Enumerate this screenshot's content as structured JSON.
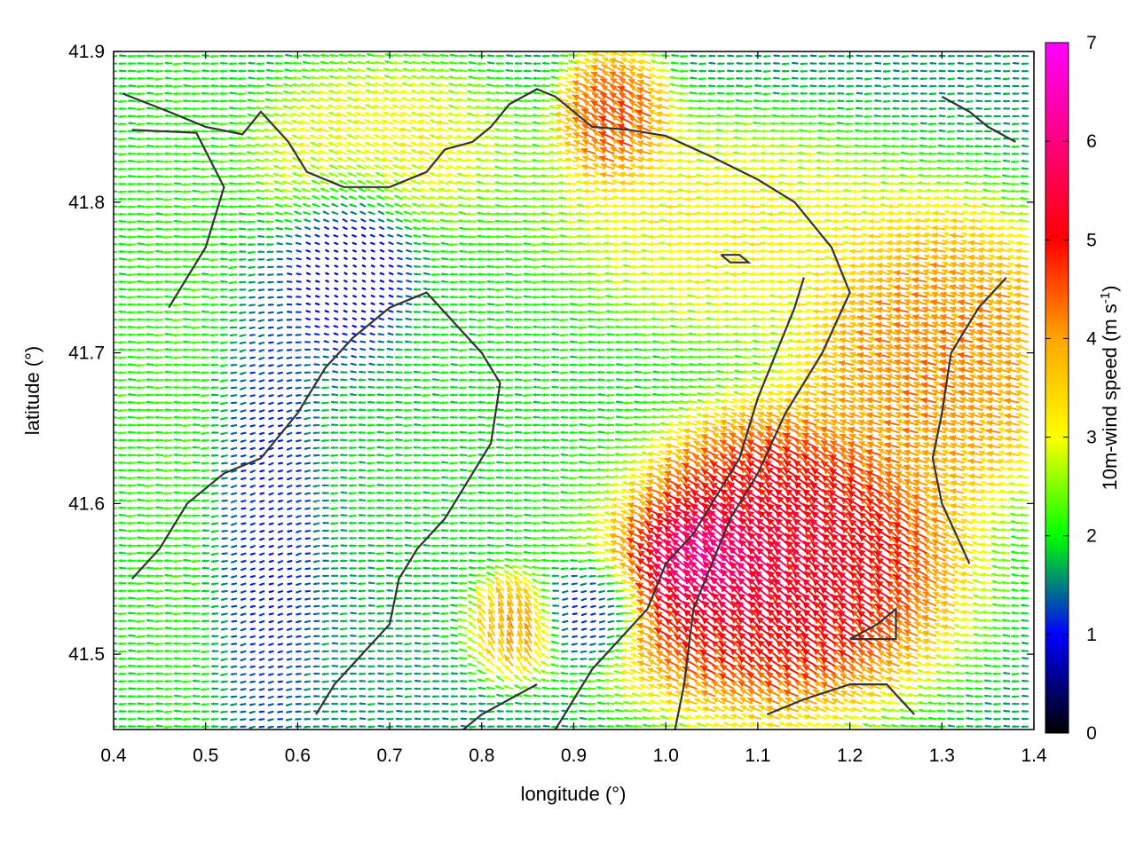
{
  "chart_data": {
    "type": "vector-field",
    "xlabel": "longitude (°)",
    "ylabel": "latitude (°)",
    "colorbar_label": "10m-wind speed (m s",
    "colorbar_label_sup": "-1",
    "colorbar_label_end": ")",
    "xlim": [
      0.4,
      1.4
    ],
    "ylim": [
      41.45,
      41.9
    ],
    "xticks": [
      "0.4",
      "0.5",
      "0.6",
      "0.7",
      "0.8",
      "0.9",
      "1.0",
      "1.1",
      "1.2",
      "1.3",
      "1.4"
    ],
    "yticks": [
      "41.5",
      "41.6",
      "41.7",
      "41.8",
      "41.9"
    ],
    "cbar_range": [
      0,
      7
    ],
    "cbar_ticks": [
      "0",
      "1",
      "2",
      "3",
      "4",
      "5",
      "6",
      "7"
    ],
    "colormap": [
      "#000000",
      "#0000ff",
      "#00ff00",
      "#ffff00",
      "#ffa500",
      "#ff0000",
      "#ff00ff"
    ],
    "grid": true,
    "vector_grid": {
      "dx": 0.01,
      "dy": 0.005
    },
    "wind_regions": [
      {
        "name": "west-green-band",
        "center": [
          0.47,
          41.68
        ],
        "radius": [
          0.07,
          0.22
        ],
        "speed": 2.2,
        "direction_deg": 180
      },
      {
        "name": "west-blue-valley",
        "center": [
          0.56,
          41.6
        ],
        "radius": [
          0.05,
          0.12
        ],
        "speed": 1.0,
        "direction_deg": 200
      },
      {
        "name": "central-calm",
        "center": [
          0.67,
          41.76
        ],
        "radius": [
          0.06,
          0.06
        ],
        "speed": 0.4,
        "direction_deg": 150
      },
      {
        "name": "central-plain",
        "center": [
          0.82,
          41.68
        ],
        "radius": [
          0.16,
          0.12
        ],
        "speed": 2.0,
        "direction_deg": 180
      },
      {
        "name": "north-yellow",
        "center": [
          0.7,
          41.83
        ],
        "radius": [
          0.12,
          0.05
        ],
        "speed": 3.3,
        "direction_deg": 160
      },
      {
        "name": "north-orange",
        "center": [
          0.95,
          41.85
        ],
        "radius": [
          0.05,
          0.04
        ],
        "speed": 4.8,
        "direction_deg": 145
      },
      {
        "name": "east-yellow",
        "center": [
          1.05,
          41.78
        ],
        "radius": [
          0.18,
          0.06
        ],
        "speed": 3.2,
        "direction_deg": 175
      },
      {
        "name": "east-orange-sea",
        "center": [
          1.3,
          41.7
        ],
        "radius": [
          0.12,
          0.08
        ],
        "speed": 4.3,
        "direction_deg": 160
      },
      {
        "name": "southeast-red",
        "center": [
          1.12,
          41.56
        ],
        "radius": [
          0.16,
          0.08
        ],
        "speed": 5.6,
        "direction_deg": 135
      },
      {
        "name": "southeast-magenta",
        "center": [
          1.05,
          41.56
        ],
        "radius": [
          0.06,
          0.03
        ],
        "speed": 6.8,
        "direction_deg": 130
      },
      {
        "name": "south-orange",
        "center": [
          0.84,
          41.52
        ],
        "radius": [
          0.04,
          0.03
        ],
        "speed": 4.2,
        "direction_deg": 100
      },
      {
        "name": "south-calm",
        "center": [
          0.92,
          41.53
        ],
        "radius": [
          0.05,
          0.03
        ],
        "speed": 0.8,
        "direction_deg": 200
      }
    ],
    "contour_lines": [
      [
        [
          0.41,
          41.872
        ],
        [
          0.46,
          41.86
        ],
        [
          0.5,
          41.85
        ],
        [
          0.54,
          41.845
        ],
        [
          0.56,
          41.86
        ],
        [
          0.59,
          41.84
        ],
        [
          0.61,
          41.82
        ],
        [
          0.65,
          41.81
        ],
        [
          0.7,
          41.81
        ],
        [
          0.74,
          41.82
        ],
        [
          0.76,
          41.835
        ],
        [
          0.79,
          41.84
        ],
        [
          0.81,
          41.85
        ],
        [
          0.83,
          41.865
        ],
        [
          0.86,
          41.875
        ],
        [
          0.88,
          41.87
        ],
        [
          0.9,
          41.86
        ],
        [
          0.92,
          41.85
        ],
        [
          0.96,
          41.848
        ],
        [
          1.0,
          41.844
        ],
        [
          1.05,
          41.83
        ],
        [
          1.1,
          41.815
        ],
        [
          1.14,
          41.8
        ],
        [
          1.18,
          41.77
        ],
        [
          1.2,
          41.74
        ],
        [
          1.17,
          41.7
        ],
        [
          1.13,
          41.66
        ],
        [
          1.1,
          41.62
        ],
        [
          1.07,
          41.59
        ],
        [
          1.05,
          41.56
        ],
        [
          1.03,
          41.53
        ],
        [
          1.02,
          41.48
        ],
        [
          1.01,
          41.45
        ]
      ],
      [
        [
          0.46,
          41.73
        ],
        [
          0.5,
          41.77
        ],
        [
          0.52,
          41.81
        ],
        [
          0.49,
          41.846
        ],
        [
          0.42,
          41.848
        ]
      ],
      [
        [
          0.42,
          41.55
        ],
        [
          0.45,
          41.57
        ],
        [
          0.48,
          41.6
        ],
        [
          0.52,
          41.62
        ],
        [
          0.56,
          41.63
        ],
        [
          0.6,
          41.66
        ],
        [
          0.63,
          41.69
        ],
        [
          0.66,
          41.71
        ],
        [
          0.7,
          41.73
        ],
        [
          0.74,
          41.74
        ],
        [
          0.77,
          41.72
        ],
        [
          0.8,
          41.7
        ],
        [
          0.82,
          41.68
        ],
        [
          0.81,
          41.64
        ],
        [
          0.79,
          41.62
        ],
        [
          0.76,
          41.59
        ],
        [
          0.73,
          41.57
        ],
        [
          0.71,
          41.55
        ],
        [
          0.7,
          41.52
        ],
        [
          0.67,
          41.5
        ],
        [
          0.64,
          41.48
        ],
        [
          0.62,
          41.46
        ]
      ],
      [
        [
          0.88,
          41.45
        ],
        [
          0.9,
          41.47
        ],
        [
          0.92,
          41.49
        ],
        [
          0.95,
          41.51
        ],
        [
          0.98,
          41.53
        ],
        [
          1.0,
          41.56
        ],
        [
          1.03,
          41.58
        ],
        [
          1.05,
          41.6
        ],
        [
          1.08,
          41.63
        ],
        [
          1.1,
          41.67
        ],
        [
          1.12,
          41.7
        ],
        [
          1.14,
          41.73
        ],
        [
          1.15,
          41.75
        ]
      ],
      [
        [
          0.78,
          41.45
        ],
        [
          0.8,
          41.46
        ],
        [
          0.83,
          41.47
        ],
        [
          0.86,
          41.48
        ]
      ],
      [
        [
          1.11,
          41.46
        ],
        [
          1.15,
          41.47
        ],
        [
          1.2,
          41.48
        ],
        [
          1.24,
          41.48
        ],
        [
          1.27,
          41.46
        ]
      ],
      [
        [
          1.2,
          41.51
        ],
        [
          1.23,
          41.52
        ],
        [
          1.25,
          41.53
        ],
        [
          1.25,
          41.51
        ],
        [
          1.2,
          41.51
        ]
      ],
      [
        [
          1.3,
          41.87
        ],
        [
          1.33,
          41.86
        ],
        [
          1.35,
          41.85
        ],
        [
          1.38,
          41.84
        ]
      ],
      [
        [
          1.06,
          41.765
        ],
        [
          1.08,
          41.765
        ],
        [
          1.09,
          41.76
        ],
        [
          1.07,
          41.76
        ],
        [
          1.06,
          41.765
        ]
      ],
      [
        [
          1.37,
          41.75
        ],
        [
          1.34,
          41.73
        ],
        [
          1.31,
          41.7
        ],
        [
          1.3,
          41.66
        ],
        [
          1.29,
          41.63
        ],
        [
          1.3,
          41.6
        ],
        [
          1.33,
          41.56
        ]
      ]
    ]
  }
}
